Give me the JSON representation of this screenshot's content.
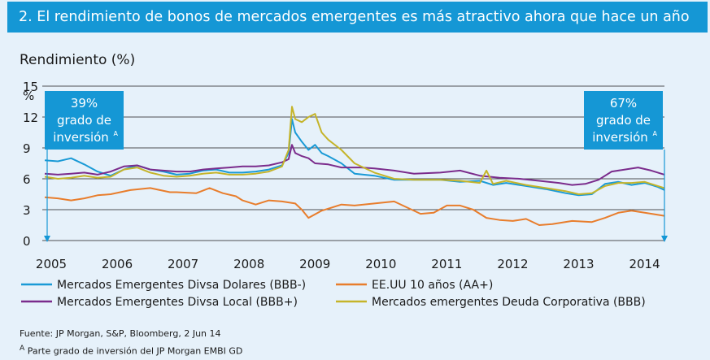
{
  "chart_data": {
    "type": "line",
    "title": "2. El rendimiento de bonos de mercados emergentes es más atractivo ahora que hace un año",
    "subtitle": "Rendimiento (%)",
    "y_unit": "%",
    "yticks": [
      "15",
      "12",
      "9",
      "6",
      "3",
      "0"
    ],
    "ylim": [
      0,
      15
    ],
    "xticks": [
      "2005",
      "2006",
      "2007",
      "2008",
      "2009",
      "2010",
      "2011",
      "2012",
      "2013",
      "2014"
    ],
    "xlim": [
      2005.0,
      2014.4
    ],
    "annotations": [
      {
        "pct": "39%",
        "line1": "grado de",
        "line2": "inversión",
        "sup": "A",
        "date": 2005.0
      },
      {
        "pct": "67%",
        "line1": "grado de",
        "line2": "inversión",
        "sup": "A",
        "date": 2014.4
      }
    ],
    "series": [
      {
        "name": "Mercados Emergentes Divsa Dolares (BBB-)",
        "color": "#1a9ad6",
        "x": [
          2005.0,
          2005.2,
          2005.4,
          2005.6,
          2005.8,
          2006.0,
          2006.2,
          2006.4,
          2006.6,
          2006.8,
          2007.0,
          2007.2,
          2007.4,
          2007.6,
          2007.8,
          2008.0,
          2008.2,
          2008.4,
          2008.6,
          2008.7,
          2008.75,
          2008.8,
          2008.9,
          2009.0,
          2009.1,
          2009.2,
          2009.3,
          2009.5,
          2009.7,
          2010.0,
          2010.3,
          2010.6,
          2011.0,
          2011.3,
          2011.6,
          2011.8,
          2012.0,
          2012.3,
          2012.6,
          2012.9,
          2013.1,
          2013.3,
          2013.5,
          2013.7,
          2013.9,
          2014.1,
          2014.3,
          2014.4
        ],
        "y": [
          7.8,
          7.7,
          8.0,
          7.4,
          6.7,
          6.3,
          6.9,
          7.3,
          6.9,
          6.7,
          6.4,
          6.5,
          6.8,
          6.9,
          6.6,
          6.6,
          6.7,
          6.9,
          7.3,
          8.5,
          11.8,
          10.5,
          9.6,
          8.8,
          9.3,
          8.5,
          8.2,
          7.5,
          6.5,
          6.3,
          5.9,
          5.9,
          5.9,
          5.7,
          5.8,
          5.4,
          5.6,
          5.3,
          5.0,
          4.6,
          4.4,
          4.5,
          5.5,
          5.7,
          5.4,
          5.6,
          5.2,
          4.9
        ]
      },
      {
        "name": "EE.UU 10 años (AA+)",
        "color": "#e87d2c",
        "x": [
          2005.0,
          2005.2,
          2005.4,
          2005.6,
          2005.8,
          2006.0,
          2006.3,
          2006.6,
          2006.9,
          2007.0,
          2007.3,
          2007.5,
          2007.7,
          2007.9,
          2008.0,
          2008.2,
          2008.4,
          2008.6,
          2008.8,
          2008.9,
          2009.0,
          2009.2,
          2009.5,
          2009.7,
          2010.0,
          2010.3,
          2010.5,
          2010.7,
          2010.9,
          2011.1,
          2011.3,
          2011.5,
          2011.7,
          2011.9,
          2012.1,
          2012.3,
          2012.5,
          2012.7,
          2013.0,
          2013.3,
          2013.5,
          2013.7,
          2013.9,
          2014.1,
          2014.4
        ],
        "y": [
          4.2,
          4.1,
          3.9,
          4.1,
          4.4,
          4.5,
          4.9,
          5.1,
          4.7,
          4.7,
          4.6,
          5.1,
          4.6,
          4.3,
          3.9,
          3.5,
          3.9,
          3.8,
          3.6,
          3.0,
          2.2,
          2.9,
          3.5,
          3.4,
          3.6,
          3.8,
          3.2,
          2.6,
          2.7,
          3.4,
          3.4,
          3.0,
          2.2,
          2.0,
          1.9,
          2.1,
          1.5,
          1.6,
          1.9,
          1.8,
          2.2,
          2.7,
          2.9,
          2.7,
          2.4
        ]
      },
      {
        "name": "Mercados Emergentes Divsa Local (BBB+)",
        "color": "#7b2c8c",
        "x": [
          2005.0,
          2005.2,
          2005.4,
          2005.6,
          2005.8,
          2006.0,
          2006.2,
          2006.4,
          2006.6,
          2006.8,
          2007.0,
          2007.2,
          2007.4,
          2007.6,
          2007.8,
          2008.0,
          2008.2,
          2008.4,
          2008.6,
          2008.7,
          2008.75,
          2008.8,
          2008.9,
          2009.0,
          2009.1,
          2009.3,
          2009.5,
          2009.8,
          2010.0,
          2010.3,
          2010.6,
          2011.0,
          2011.3,
          2011.6,
          2011.9,
          2012.2,
          2012.5,
          2012.8,
          2013.0,
          2013.2,
          2013.4,
          2013.6,
          2013.8,
          2014.0,
          2014.2,
          2014.4
        ],
        "y": [
          6.5,
          6.4,
          6.5,
          6.6,
          6.4,
          6.7,
          7.2,
          7.3,
          6.9,
          6.8,
          6.7,
          6.7,
          6.9,
          7.0,
          7.1,
          7.2,
          7.2,
          7.3,
          7.6,
          7.9,
          9.3,
          8.5,
          8.2,
          8.0,
          7.5,
          7.4,
          7.1,
          7.1,
          7.0,
          6.8,
          6.5,
          6.6,
          6.8,
          6.3,
          6.1,
          6.0,
          5.8,
          5.6,
          5.4,
          5.5,
          5.9,
          6.7,
          6.9,
          7.1,
          6.8,
          6.4
        ]
      },
      {
        "name": "Mercados emergentes Deuda Corporativa (BBB)",
        "color": "#c5b42a",
        "x": [
          2005.0,
          2005.2,
          2005.4,
          2005.6,
          2005.8,
          2006.0,
          2006.2,
          2006.4,
          2006.6,
          2006.8,
          2007.0,
          2007.2,
          2007.4,
          2007.6,
          2007.8,
          2008.0,
          2008.2,
          2008.4,
          2008.6,
          2008.7,
          2008.75,
          2008.8,
          2008.9,
          2009.0,
          2009.1,
          2009.2,
          2009.3,
          2009.5,
          2009.7,
          2010.0,
          2010.3,
          2010.6,
          2011.0,
          2011.3,
          2011.6,
          2011.7,
          2011.8,
          2012.0,
          2012.3,
          2012.6,
          2012.9,
          2013.1,
          2013.3,
          2013.5,
          2013.7,
          2013.9,
          2014.1,
          2014.3,
          2014.4
        ],
        "y": [
          6.2,
          6.0,
          6.1,
          6.3,
          6.1,
          6.2,
          6.9,
          7.1,
          6.6,
          6.3,
          6.2,
          6.3,
          6.5,
          6.6,
          6.4,
          6.4,
          6.5,
          6.7,
          7.2,
          8.8,
          13.0,
          11.8,
          11.5,
          12.0,
          12.3,
          10.5,
          9.8,
          8.8,
          7.5,
          6.6,
          6.0,
          5.9,
          5.9,
          5.8,
          5.6,
          6.8,
          5.5,
          5.8,
          5.4,
          5.1,
          4.8,
          4.5,
          4.6,
          5.3,
          5.6,
          5.6,
          5.7,
          5.3,
          5.1
        ]
      }
    ],
    "legend": [
      {
        "label": "Mercados Emergentes Divsa Dolares (BBB-)",
        "color": "#1a9ad6"
      },
      {
        "label": "EE.UU 10 años (AA+)",
        "color": "#e87d2c"
      },
      {
        "label": "Mercados Emergentes Divsa Local (BBB+)",
        "color": "#7b2c8c"
      },
      {
        "label": "Mercados emergentes Deuda Corporativa (BBB)",
        "color": "#c5b42a"
      }
    ]
  },
  "footer": {
    "source": "Fuente: JP Morgan, S&P, Bloomberg, 2 Jun 14",
    "note_sup": "A",
    "note": "Parte grado de inversión del JP Morgan EMBI GD"
  },
  "style": {
    "banner_color": "#1597d5",
    "background": "#e6f1fa",
    "grid_color": "#1a1a1a",
    "annotation_color": "#1597d5"
  }
}
